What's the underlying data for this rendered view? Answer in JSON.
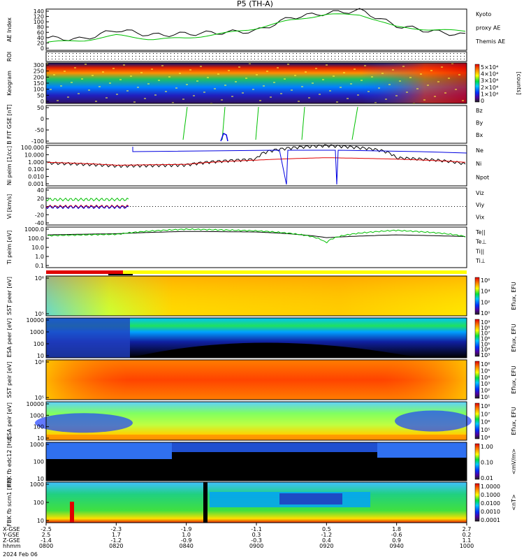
{
  "title": "P5 (TH-A)",
  "date_label": "2024 Feb 06",
  "x_axis": {
    "row_labels": [
      "X-GSE",
      "Y-GSE",
      "Z-GSE",
      "hhmm"
    ],
    "ticks": [
      {
        "x": "-2.5",
        "y": "2.5",
        "z": "-1.4",
        "t": "0800"
      },
      {
        "x": "-2.3",
        "y": "1.7",
        "z": "-1.2",
        "t": "0820"
      },
      {
        "x": "-1.9",
        "y": "1.0",
        "z": "-0.9",
        "t": "0840"
      },
      {
        "x": "-1.1",
        "y": "0.3",
        "z": "-0.3",
        "t": "0900"
      },
      {
        "x": "0.5",
        "y": "-1.2",
        "z": "0.4",
        "t": "0920"
      },
      {
        "x": "1.8",
        "y": "-0.6",
        "z": "0.9",
        "t": "0940"
      },
      {
        "x": "2.7",
        "y": "0.2",
        "z": "1.1",
        "t": "1000"
      }
    ]
  },
  "panels": [
    {
      "id": "ae",
      "ylabel": "AE Index",
      "ticks": [
        "140",
        "120",
        "100",
        "80",
        "60",
        "40",
        "20",
        "0"
      ],
      "legend": [
        {
          "text": "Kyoto",
          "color": "#00c000"
        },
        {
          "text": "proxy AE",
          "color": "#00c000"
        },
        {
          "text": "Themis AE",
          "color": "#000000"
        }
      ]
    },
    {
      "id": "roi",
      "ylabel": "ROI",
      "ticks": [],
      "legend": []
    },
    {
      "id": "keo",
      "ylabel": "Keogram",
      "ticks": [
        "300",
        "250",
        "200",
        "150",
        "100",
        "50",
        "0"
      ],
      "colorbar": {
        "ticks": [
          "5×10⁴",
          "4×10⁴",
          "3×10⁴",
          "2×10⁴",
          "1×10⁴",
          "0"
        ],
        "unit": "[counts]"
      }
    },
    {
      "id": "bfit",
      "ylabel": "B FIT GSE [nT]",
      "ticks": [
        "50",
        "0",
        "-50",
        "-100"
      ],
      "legend": [
        {
          "text": "Bz",
          "color": "#e00000"
        },
        {
          "text": "By",
          "color": "#00c000"
        },
        {
          "text": "Bx",
          "color": "#0000e0"
        }
      ]
    },
    {
      "id": "ni",
      "ylabel": "Ni peim [1/cc]",
      "ticks": [
        "100.000",
        "10.000",
        "1.000",
        "0.100",
        "0.010",
        "0.001"
      ],
      "legend": [
        {
          "text": "Ne",
          "color": "#e00000"
        },
        {
          "text": "Ni",
          "color": "#000000"
        },
        {
          "text": "Npot",
          "color": "#0000e0"
        }
      ]
    },
    {
      "id": "vi",
      "ylabel": "Vi [km/s]",
      "ticks": [
        "40",
        "20",
        "0",
        "-20",
        "-40"
      ],
      "legend": [
        {
          "text": "Viz",
          "color": "#e00000"
        },
        {
          "text": "Viy",
          "color": "#00c000"
        },
        {
          "text": "Vix",
          "color": "#0000e0"
        }
      ]
    },
    {
      "id": "ti",
      "ylabel": "Ti peim [eV]",
      "ticks": [
        "1000.0",
        "100.0",
        "10.0",
        "1.0",
        "0.1"
      ],
      "legend": [
        {
          "text": "Te||",
          "color": "#000000"
        },
        {
          "text": "Te⊥",
          "color": "#e00000"
        },
        {
          "text": "Ti||",
          "color": "#00c000"
        },
        {
          "text": "Ti⊥",
          "color": "#0000e0"
        }
      ]
    },
    {
      "id": "sste",
      "ylabel": "SST peer [eV]",
      "ticks": [
        "10⁶",
        "10⁵"
      ],
      "cb_label": "Eflux, EFU",
      "colorbar": {
        "ticks": [
          "10⁶",
          "10⁴",
          "10²",
          "10⁰"
        ]
      }
    },
    {
      "id": "esae",
      "ylabel": "ESA peer [eV]",
      "ticks": [
        "10000",
        "1000",
        "100",
        "10"
      ],
      "cb_label": "Eflux, EFU",
      "colorbar": {
        "ticks": [
          "10⁹",
          "10⁸",
          "10⁷",
          "10⁶",
          "10⁵",
          "10⁴",
          "10³"
        ]
      }
    },
    {
      "id": "ssti",
      "ylabel": "SST peir [eV]",
      "ticks": [
        "10⁶",
        "10⁵"
      ],
      "cb_label": "Eflux, EFU",
      "colorbar": {
        "ticks": [
          "10⁶",
          "10⁵",
          "10⁴",
          "10³",
          "10²",
          "10¹"
        ]
      }
    },
    {
      "id": "esai",
      "ylabel": "ESA peir [eV]",
      "ticks": [
        "10000",
        "1000",
        "100",
        "10"
      ],
      "cb_label": "Eflux, EFU",
      "colorbar": {
        "ticks": [
          "10⁸",
          "10⁷",
          "10⁶",
          "10⁵",
          "10⁴"
        ]
      }
    },
    {
      "id": "fbke",
      "ylabel": "FBK fb edc12 [Hz]",
      "ticks": [
        "1000",
        "100",
        "10"
      ],
      "cb_label": "<mV/m>",
      "colorbar": {
        "ticks": [
          "1.00",
          "0.10",
          "0.01"
        ]
      }
    },
    {
      "id": "fbkb",
      "ylabel": "FBK fb scm1 [Hz]",
      "ticks": [
        "1000",
        "100",
        "10"
      ],
      "cb_label": "<nT>",
      "colorbar": {
        "ticks": [
          "1.0000",
          "0.1000",
          "0.0100",
          "0.0010",
          "0.0001"
        ]
      }
    }
  ],
  "chart_data": [
    {
      "type": "line",
      "title": "P5 (TH-A)",
      "ylabel": "AE Index",
      "ylim": [
        0,
        150
      ],
      "x": [
        "0800",
        "0810",
        "0820",
        "0830",
        "0840",
        "0850",
        "0900",
        "0910",
        "0920",
        "0930",
        "0940",
        "0950",
        "1000"
      ],
      "series": [
        {
          "name": "Themis AE",
          "values": [
            45,
            40,
            75,
            55,
            60,
            65,
            70,
            120,
            135,
            145,
            90,
            70,
            55
          ]
        },
        {
          "name": "Kyoto",
          "values": [
            30,
            35,
            55,
            40,
            45,
            60,
            80,
            110,
            130,
            130,
            85,
            75,
            70
          ]
        }
      ]
    },
    {
      "type": "heatmap",
      "ylabel": "Keogram",
      "ylim": [
        0,
        300
      ],
      "zlabel": "[counts]",
      "zlim": [
        0,
        50000
      ]
    },
    {
      "type": "line",
      "ylabel": "B FIT GSE [nT]",
      "ylim": [
        -100,
        50
      ],
      "series": [
        {
          "name": "By"
        },
        {
          "name": "Bx"
        }
      ]
    },
    {
      "type": "line",
      "ylabel": "Ni peim [1/cc]",
      "ylim": [
        0.001,
        100
      ],
      "log": true,
      "x": [
        "0800",
        "0820",
        "0840",
        "0900",
        "0920",
        "0940",
        "1000"
      ],
      "series": [
        {
          "name": "Ni",
          "values": [
            0.7,
            0.3,
            0.4,
            2,
            100,
            3,
            0.5
          ]
        },
        {
          "name": "Ne",
          "values": [
            0.8,
            0.35,
            0.45,
            1.5,
            3,
            2,
            0.8
          ]
        },
        {
          "name": "Npot",
          "values": [
            20,
            20,
            30,
            30,
            30,
            20,
            20
          ]
        }
      ]
    },
    {
      "type": "line",
      "ylabel": "Vi [km/s]",
      "ylim": [
        -50,
        50
      ],
      "series": [
        {
          "name": "Viy",
          "values": [
            15,
            15,
            15
          ]
        },
        {
          "name": "Viz",
          "values": [
            0,
            0,
            0
          ]
        },
        {
          "name": "Vix",
          "values": [
            -2,
            -2,
            -2
          ]
        }
      ]
    },
    {
      "type": "line",
      "ylabel": "Ti peim [eV]",
      "ylim": [
        0.1,
        2000
      ],
      "log": true,
      "x": [
        "0800",
        "0820",
        "0840",
        "0900",
        "0920",
        "0940",
        "1000"
      ],
      "series": [
        {
          "name": "Te||",
          "values": [
            300,
            400,
            700,
            600,
            150,
            300,
            200
          ]
        },
        {
          "name": "Ti||",
          "values": [
            250,
            350,
            1200,
            800,
            40,
            900,
            200
          ]
        }
      ]
    },
    {
      "type": "heatmap",
      "ylabel": "SST peer [eV]",
      "zlabel": "Eflux, EFU"
    },
    {
      "type": "heatmap",
      "ylabel": "ESA peer [eV]",
      "ylim": [
        10,
        20000
      ],
      "zlabel": "Eflux, EFU"
    },
    {
      "type": "heatmap",
      "ylabel": "SST peir [eV]",
      "zlabel": "Eflux, EFU"
    },
    {
      "type": "heatmap",
      "ylabel": "ESA peir [eV]",
      "ylim": [
        10,
        20000
      ],
      "zlabel": "Eflux, EFU"
    },
    {
      "type": "heatmap",
      "ylabel": "FBK fb edc12 [Hz]",
      "zlabel": "<mV/m>",
      "zlim": [
        0.01,
        1
      ]
    },
    {
      "type": "heatmap",
      "ylabel": "FBK fb scm1 [Hz]",
      "zlabel": "<nT>",
      "zlim": [
        0.0001,
        1
      ]
    }
  ]
}
